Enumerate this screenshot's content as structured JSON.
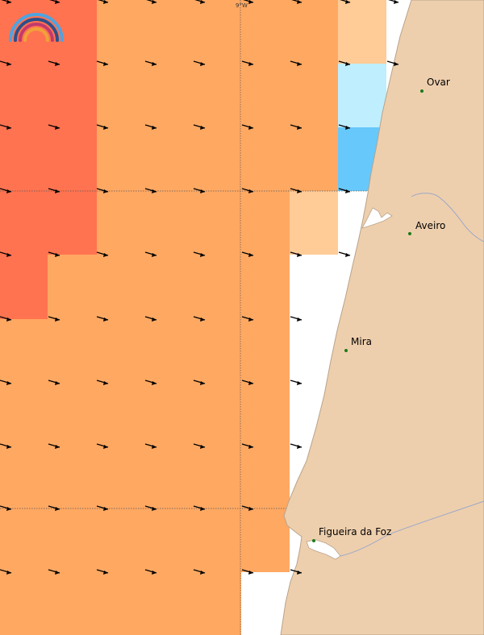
{
  "map": {
    "grid_label": "9°W",
    "cities": [
      {
        "name": "Ovar"
      },
      {
        "name": "Aveiro"
      },
      {
        "name": "Mira"
      },
      {
        "name": "Figueira da Foz"
      }
    ],
    "colors": {
      "land": "#eecfad",
      "land_edge": "#b9a38a",
      "river": "#9aa7c9",
      "sea": "#ffffff",
      "cell_red": "#ff7350",
      "cell_orange": "#ffa862",
      "cell_light_orange": "#ffcb97",
      "cell_pale_blue": "#bfeeff",
      "cell_blue": "#67c8fb",
      "city_dot": "#1a7a1a",
      "arrow": "#000000"
    },
    "logo_icon": "rainbow-logo-icon",
    "arrow_icon": "wind-arrow-icon"
  }
}
